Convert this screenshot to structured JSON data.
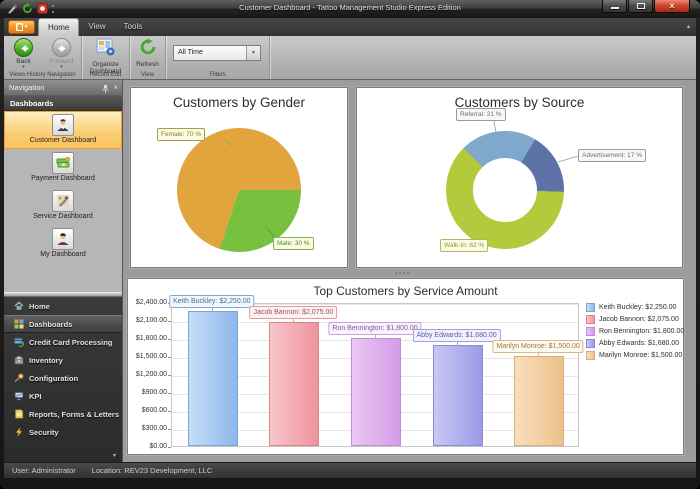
{
  "titlebar": {
    "title": "Customer Dashboard - Tattoo Management Studio Express Edition"
  },
  "icons": {
    "dropdown": "▾",
    "up_chevron": "▴",
    "close_x": "×"
  },
  "ribbon": {
    "tabs": [
      {
        "label": "Home",
        "active": true
      },
      {
        "label": "View",
        "active": false
      },
      {
        "label": "Tools",
        "active": false
      }
    ],
    "groups": {
      "views_history": {
        "label": "Views History Navigation",
        "back": "Back",
        "forward": "Forward"
      },
      "record_edit": {
        "label": "Record Edit",
        "organize_line1": "Organize",
        "organize_line2": "Dashboard"
      },
      "view": {
        "label": "View",
        "refresh": "Refresh"
      },
      "filters": {
        "label": "Filters",
        "combo_value": "All Time"
      }
    }
  },
  "nav_panel": {
    "title": "Navigation",
    "section": "Dashboards",
    "dashboards": [
      {
        "label": "Customer Dashboard",
        "selected": true
      },
      {
        "label": "Payment Dashboard",
        "selected": false
      },
      {
        "label": "Service Dashboard",
        "selected": false
      },
      {
        "label": "My Dashboard",
        "selected": false
      }
    ],
    "menu": [
      {
        "label": "Home",
        "selected": false
      },
      {
        "label": "Dashboards",
        "selected": true
      },
      {
        "label": "Credit Card Processing",
        "selected": false
      },
      {
        "label": "Inventory",
        "selected": false
      },
      {
        "label": "Configuration",
        "selected": false
      },
      {
        "label": "KPI",
        "selected": false
      },
      {
        "label": "Reports, Forms & Letters",
        "selected": false
      },
      {
        "label": "Security",
        "selected": false
      }
    ]
  },
  "statusbar": {
    "user": "User: Administrator",
    "location": "Location: REV23 Development, LLC"
  },
  "chart_data": [
    {
      "type": "pie",
      "title": "Customers by Gender",
      "legend_position": "none",
      "slices": [
        {
          "label": "Female",
          "value": 70,
          "callout": "Female: 70 %",
          "color": "#E2A53E",
          "start_angle": 198,
          "callout_text": "#8A7A28",
          "callout_border": "#A3A04C",
          "callout_bg": "#FCFAE3"
        },
        {
          "label": "Male",
          "value": 30,
          "callout": "Male: 30 %",
          "color": "#77C13E",
          "start_angle": 90,
          "callout_text": "#4F8F28",
          "callout_border": "#7FB356",
          "callout_bg": "#FCFAE3"
        }
      ]
    },
    {
      "type": "donut",
      "title": "Customers by Source",
      "legend_position": "none",
      "slices": [
        {
          "label": "Referral",
          "value": 21,
          "callout": "Referral: 21 %",
          "color": "#7FA9CC",
          "start_angle": 315,
          "callout_text": "#6E6E6E",
          "callout_border": "#9A9A9A",
          "callout_bg": "#F8F8F8"
        },
        {
          "label": "Advertisement",
          "value": 17,
          "callout": "Advertisement: 17 %",
          "color": "#5D72A6",
          "callout_text": "#6E6E6E",
          "callout_border": "#9A9A9A",
          "callout_bg": "#F8F8F8"
        },
        {
          "label": "Walk-In",
          "value": 62,
          "callout": "Walk-In: 62 %",
          "color": "#B5C93C",
          "callout_text": "#8E9B2B",
          "callout_border": "#AEB958",
          "callout_bg": "#FBFAE4"
        }
      ]
    },
    {
      "type": "bar",
      "title": "Top Customers by Service Amount",
      "categories": [
        "Keith Buckley",
        "Jacob Bannon",
        "Ron Bennington",
        "Abby Edwards",
        "Marilyn Monroe"
      ],
      "values": [
        2250,
        2075,
        1800,
        1680,
        1500
      ],
      "point_labels": [
        "Keith Buckley: $2,250.00",
        "Jacob Bannon: $2,075.00",
        "Ron Bennington: $1,800.00",
        "Abby Edwards: $1,680.00",
        "Marilyn Monroe: $1,500.00"
      ],
      "legend": [
        "Keith Buckley: $2,250.00",
        "Jacob Bannon: $2,075.00",
        "Ron Bennington: $1,800.00",
        "Abby Edwards: $1,680.00",
        "Marilyn Monroe: $1,500.00"
      ],
      "ylim": [
        0,
        2400
      ],
      "ytick_step": 300,
      "ytick_labels": [
        "$0.00",
        "$300.00",
        "$600.00",
        "$900.00",
        "$1,200.00",
        "$1,500.00",
        "$1,800.00",
        "$2,100.00",
        "$2,400.00"
      ],
      "grid": true,
      "legend_position": "right",
      "bar_colors": [
        {
          "light": "#C6DDF6",
          "base": "#8CB8EA",
          "border": "#7BA6D9",
          "label_text": "#4A6A99",
          "label_border": "#85A9D6",
          "label_bg": "#F2F7FD"
        },
        {
          "light": "#F9C6CC",
          "base": "#EF939B",
          "border": "#DD828B",
          "label_text": "#A2525B",
          "label_border": "#E09AA1",
          "label_bg": "#FDF2F3"
        },
        {
          "light": "#EBC7F4",
          "base": "#D49CE6",
          "border": "#C28BD6",
          "label_text": "#7E57A0",
          "label_border": "#CBA0DC",
          "label_bg": "#FAF2FD"
        },
        {
          "light": "#C8C8F4",
          "base": "#9B9BE7",
          "border": "#8A8AD6",
          "label_text": "#5C5CA8",
          "label_border": "#A0A0DC",
          "label_bg": "#F2F2FD"
        },
        {
          "light": "#F8DFBA",
          "base": "#EDC08B",
          "border": "#DCAE7A",
          "label_text": "#A07A42",
          "label_border": "#D9B88A",
          "label_bg": "#FDF8F0"
        }
      ]
    }
  ]
}
